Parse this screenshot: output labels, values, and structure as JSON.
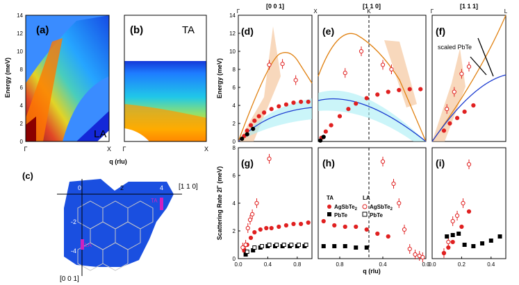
{
  "chart_data": [
    {
      "id": "a",
      "type": "heatmap",
      "panel_label": "(a)",
      "mode_label": "LA",
      "ylabel": "Energy (meV)",
      "ylim": [
        0,
        14
      ],
      "yticks": [
        "0",
        "2",
        "4",
        "6",
        "8",
        "10",
        "12",
        "14"
      ],
      "xticks": [
        "Γ",
        "X"
      ]
    },
    {
      "id": "b",
      "type": "heatmap",
      "panel_label": "(b)",
      "mode_label": "TA",
      "xticks": [
        "Γ",
        "X"
      ],
      "xlabel": "q (rlu)"
    },
    {
      "id": "c",
      "type": "diagram",
      "panel_label": "(c)",
      "dir_110": "[1 1 0]",
      "dir_001": "[0 0 1]",
      "labels": {
        "zero": "0",
        "two": "2",
        "four": "4",
        "mtwo": "-2",
        "mfour": "-4",
        "ta": "TA",
        "la": "LA"
      }
    },
    {
      "id": "d",
      "type": "scatter",
      "panel_label": "(d)",
      "direction": "[0 0 1]",
      "ylabel": "Energy (meV)",
      "ylim": [
        0,
        14
      ],
      "xlim": [
        0,
        1
      ],
      "yticks": [
        "0",
        "2",
        "4",
        "6",
        "8",
        "10",
        "12",
        "14"
      ],
      "top_ticks": [
        "Γ",
        "X"
      ],
      "series": [
        {
          "name": "TA AgSbTe2",
          "x": [
            0.08,
            0.12,
            0.17,
            0.22,
            0.28,
            0.35,
            0.45,
            0.55,
            0.65,
            0.75,
            0.85,
            0.95
          ],
          "y": [
            0.6,
            1.2,
            1.8,
            2.3,
            2.8,
            3.2,
            3.6,
            3.9,
            4.1,
            4.3,
            4.4,
            4.4
          ]
        },
        {
          "name": "LA AgSbTe2",
          "x": [
            0.42,
            0.6,
            0.78
          ],
          "y": [
            8.5,
            8.6,
            6.8
          ]
        },
        {
          "name": "PbTe",
          "x": [
            0.05,
            0.12,
            0.2
          ],
          "y": [
            0.3,
            0.8,
            1.4
          ]
        }
      ]
    },
    {
      "id": "e",
      "type": "scatter",
      "panel_label": "(e)",
      "direction": "[1 1 0]",
      "ylim": [
        0,
        14
      ],
      "xlim": [
        0,
        1
      ],
      "top_ticks": [
        "X",
        "K"
      ],
      "series": [
        {
          "name": "TA AgSbTe2",
          "x": [
            0.95,
            0.85,
            0.75,
            0.65,
            0.55,
            0.45,
            0.35,
            0.28,
            0.2,
            0.12,
            0.07,
            0.03
          ],
          "y": [
            5.8,
            5.8,
            5.7,
            5.5,
            5.2,
            4.8,
            4.2,
            3.6,
            2.8,
            1.8,
            1.1,
            0.4
          ]
        },
        {
          "name": "LA AgSbTe2",
          "x": [
            0.68,
            0.6,
            0.4,
            0.25
          ],
          "y": [
            8.0,
            8.5,
            10.0,
            7.6
          ]
        },
        {
          "name": "PbTe",
          "x": [
            0.05,
            0.02
          ],
          "y": [
            0.5,
            0.1
          ]
        }
      ]
    },
    {
      "id": "f",
      "type": "scatter",
      "panel_label": "(f)",
      "direction": "[1 1 1]",
      "ylim": [
        0,
        14
      ],
      "xlim": [
        0,
        0.5
      ],
      "top_ticks": [
        "Γ",
        "L"
      ],
      "annotation": "scaled PbTe",
      "series": [
        {
          "name": "TA AgSbTe2",
          "x": [
            0.08,
            0.12,
            0.17,
            0.22,
            0.28
          ],
          "y": [
            1.2,
            2.0,
            2.6,
            3.3,
            4.0
          ]
        },
        {
          "name": "LA AgSbTe2",
          "x": [
            0.1,
            0.15,
            0.2,
            0.25
          ],
          "y": [
            3.6,
            5.5,
            7.5,
            8.3
          ]
        }
      ]
    },
    {
      "id": "g",
      "type": "scatter",
      "panel_label": "(g)",
      "ylabel": "Scattering Rate 2Γ (meV)",
      "ylim": [
        0,
        8
      ],
      "xlim": [
        0,
        1
      ],
      "yticks": [
        "0",
        "2",
        "4",
        "6",
        "8"
      ],
      "xticks": [
        "0.0",
        "0.4",
        "0.8"
      ],
      "series": [
        {
          "name": "TA AgSbTe2",
          "x": [
            0.08,
            0.12,
            0.17,
            0.22,
            0.3,
            0.38,
            0.45,
            0.55,
            0.65,
            0.75,
            0.85,
            0.95
          ],
          "y": [
            0.6,
            1.0,
            1.5,
            1.9,
            2.1,
            2.2,
            2.2,
            2.3,
            2.4,
            2.5,
            2.5,
            2.6
          ]
        },
        {
          "name": "LA AgSbTe2",
          "x": [
            0.06,
            0.1,
            0.13,
            0.16,
            0.19,
            0.25,
            0.42
          ],
          "y": [
            0.8,
            1.0,
            2.2,
            2.8,
            3.2,
            4.0,
            7.2
          ]
        },
        {
          "name": "TA PbTe",
          "x": [
            0.1,
            0.2,
            0.3,
            0.4,
            0.5,
            0.6,
            0.7,
            0.8,
            0.9
          ],
          "y": [
            0.3,
            0.6,
            0.8,
            0.9,
            0.9,
            0.9,
            0.9,
            0.9,
            0.9
          ]
        },
        {
          "name": "LA PbTe",
          "x": [
            0.12,
            0.22,
            0.32,
            0.42,
            0.52,
            0.62,
            0.72,
            0.82,
            0.92
          ],
          "y": [
            0.5,
            0.8,
            0.9,
            1.0,
            1.0,
            1.0,
            1.0,
            1.0,
            1.0
          ]
        }
      ]
    },
    {
      "id": "h",
      "type": "scatter",
      "panel_label": "(h)",
      "ylim": [
        0,
        8
      ],
      "xlim": [
        1,
        0
      ],
      "xticks": [
        "0.8",
        "0.4",
        "0.0"
      ],
      "xlabel": "q (rlu)",
      "legend": {
        "ta": "TA",
        "la": "LA",
        "agsbte": "AgSbTe",
        "sub": "2",
        "pbte": "PbTe"
      },
      "series": [
        {
          "name": "TA AgSbTe2",
          "x": [
            0.95,
            0.85,
            0.75,
            0.65,
            0.55,
            0.45,
            0.35
          ],
          "y": [
            2.7,
            2.4,
            2.3,
            2.3,
            2.1,
            1.8,
            1.6
          ]
        },
        {
          "name": "LA AgSbTe2",
          "x": [
            0.4,
            0.3,
            0.25,
            0.2,
            0.15,
            0.1,
            0.06,
            0.03
          ],
          "y": [
            7.0,
            5.4,
            4.0,
            2.1,
            0.7,
            0.3,
            0.2,
            0.1
          ]
        },
        {
          "name": "TA PbTe",
          "x": [
            0.95,
            0.85,
            0.75,
            0.65,
            0.55
          ],
          "y": [
            0.9,
            0.9,
            0.9,
            0.8,
            0.8
          ]
        }
      ]
    },
    {
      "id": "i",
      "type": "scatter",
      "panel_label": "(i)",
      "ylim": [
        0,
        8
      ],
      "xlim": [
        0,
        0.5
      ],
      "xticks": [
        "0.0",
        "0.2",
        "0.4"
      ],
      "series": [
        {
          "name": "LA AgSbTe2",
          "x": [
            0.08,
            0.11,
            0.14,
            0.17,
            0.21,
            0.25
          ],
          "y": [
            0.4,
            1.2,
            2.7,
            3.1,
            4.0,
            6.8
          ]
        },
        {
          "name": "TA AgSbTe2",
          "x": [
            0.08,
            0.11,
            0.14,
            0.2,
            0.25
          ],
          "y": [
            0.4,
            0.8,
            1.2,
            2.3,
            3.4
          ]
        },
        {
          "name": "TA PbTe",
          "x": [
            0.1,
            0.14,
            0.18,
            0.22,
            0.28,
            0.34,
            0.4,
            0.46
          ],
          "y": [
            1.6,
            1.7,
            1.8,
            1.0,
            0.9,
            1.1,
            1.3,
            1.6
          ]
        }
      ]
    }
  ]
}
